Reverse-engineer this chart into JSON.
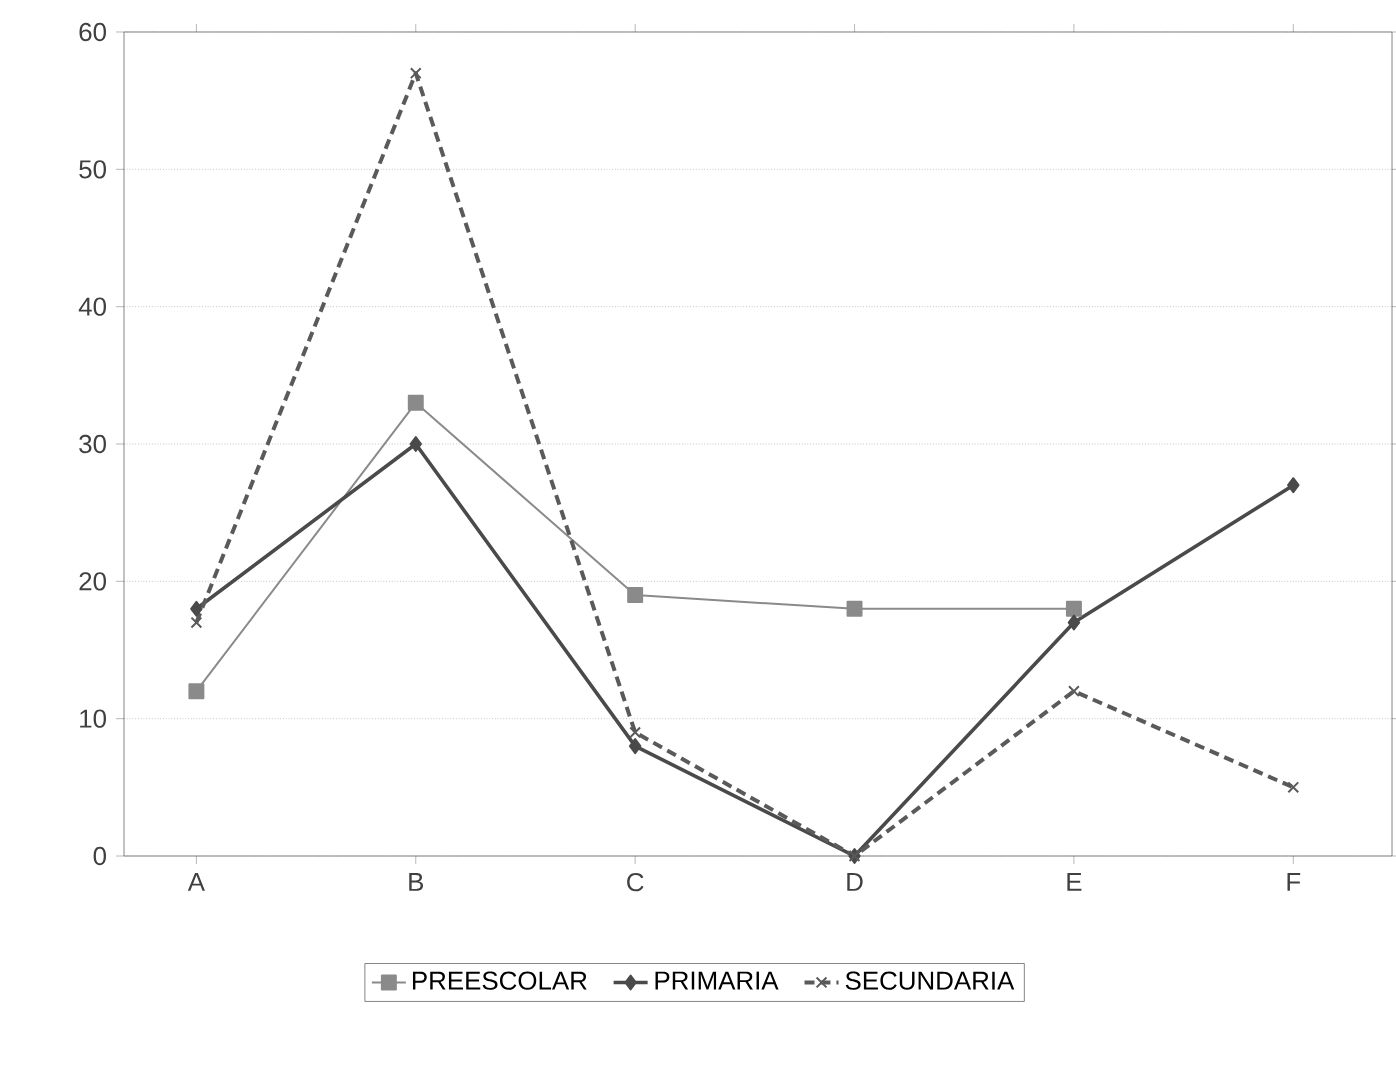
{
  "chart_data": {
    "type": "line",
    "categories": [
      "A",
      "B",
      "C",
      "D",
      "E",
      "F"
    ],
    "series": [
      {
        "name": "PREESCOLAR",
        "color": "#8a8a8a",
        "marker": "square",
        "line_style": "solid",
        "values": [
          12,
          33,
          19,
          18,
          18,
          null
        ]
      },
      {
        "name": "PRIMARIA",
        "color": "#4a4a4a",
        "marker": "diamond",
        "line_style": "solid",
        "values": [
          18,
          30,
          8,
          0,
          17,
          27
        ]
      },
      {
        "name": "SECUNDARIA",
        "color": "#5a5a5a",
        "marker": "cross",
        "line_style": "dashed",
        "values": [
          17,
          57,
          9,
          0,
          12,
          5
        ]
      }
    ],
    "ylim": [
      0,
      60
    ],
    "yticks": [
      0,
      10,
      20,
      30,
      40,
      50,
      60
    ],
    "grid": "y",
    "legend": "bottom"
  }
}
